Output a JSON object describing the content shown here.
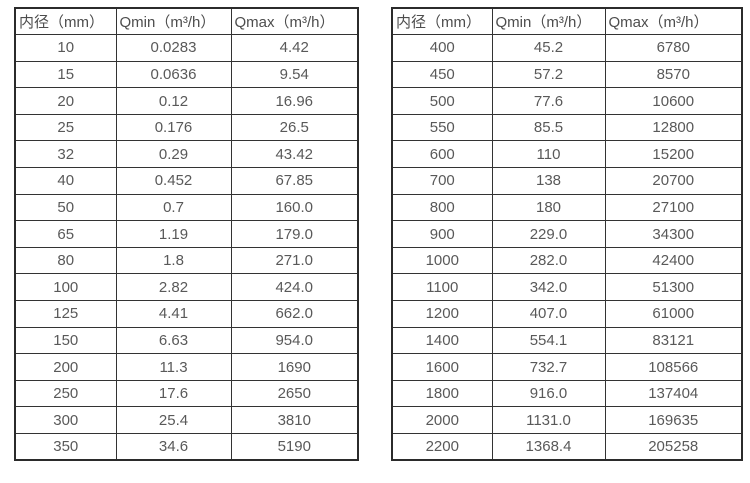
{
  "page": {
    "background_color": "#ffffff",
    "border_color": "#333333",
    "text_color": "#595959"
  },
  "tables": [
    {
      "name": "flow-rate-table-small-diameters",
      "headers": [
        "内径（mm）",
        "Qmin（m³/h）",
        "Qmax（m³/h）"
      ],
      "rows": [
        [
          "10",
          "0.0283",
          "4.42"
        ],
        [
          "15",
          "0.0636",
          "9.54"
        ],
        [
          "20",
          "0.12",
          "16.96"
        ],
        [
          "25",
          "0.176",
          "26.5"
        ],
        [
          "32",
          "0.29",
          "43.42"
        ],
        [
          "40",
          "0.452",
          "67.85"
        ],
        [
          "50",
          "0.7",
          "160.0"
        ],
        [
          "65",
          "1.19",
          "179.0"
        ],
        [
          "80",
          "1.8",
          "271.0"
        ],
        [
          "100",
          "2.82",
          "424.0"
        ],
        [
          "125",
          "4.41",
          "662.0"
        ],
        [
          "150",
          "6.63",
          "954.0"
        ],
        [
          "200",
          "11.3",
          "1690"
        ],
        [
          "250",
          "17.6",
          "2650"
        ],
        [
          "300",
          "25.4",
          "3810"
        ],
        [
          "350",
          "34.6",
          "5190"
        ]
      ]
    },
    {
      "name": "flow-rate-table-large-diameters",
      "headers": [
        "内径（mm）",
        "Qmin（m³/h）",
        "Qmax（m³/h）"
      ],
      "rows": [
        [
          "400",
          "45.2",
          "6780"
        ],
        [
          "450",
          "57.2",
          "8570"
        ],
        [
          "500",
          "77.6",
          "10600"
        ],
        [
          "550",
          "85.5",
          "12800"
        ],
        [
          "600",
          "110",
          "15200"
        ],
        [
          "700",
          "138",
          "20700"
        ],
        [
          "800",
          "180",
          "27100"
        ],
        [
          "900",
          "229.0",
          "34300"
        ],
        [
          "1000",
          "282.0",
          "42400"
        ],
        [
          "1100",
          "342.0",
          "51300"
        ],
        [
          "1200",
          "407.0",
          "61000"
        ],
        [
          "1400",
          "554.1",
          "83121"
        ],
        [
          "1600",
          "732.7",
          "108566"
        ],
        [
          "1800",
          "916.0",
          "137404"
        ],
        [
          "2000",
          "1131.0",
          "169635"
        ],
        [
          "2200",
          "1368.4",
          "205258"
        ]
      ]
    }
  ]
}
